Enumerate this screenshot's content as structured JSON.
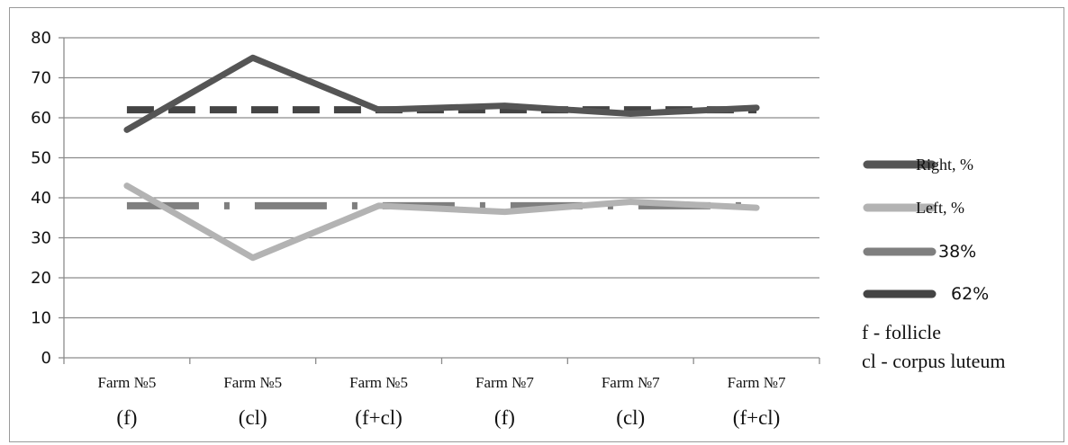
{
  "chart_data": {
    "type": "line",
    "categories": [
      [
        "Farm №5",
        "(f)"
      ],
      [
        "Farm №5",
        "(cl)"
      ],
      [
        "Farm №5",
        "(f+cl)"
      ],
      [
        "Farm №7",
        "(f)"
      ],
      [
        "Farm №7",
        "(cl)"
      ],
      [
        "Farm №7",
        "(f+cl)"
      ]
    ],
    "series": [
      {
        "name": "Right, %",
        "values": [
          57,
          75,
          62,
          63,
          61,
          62.5
        ],
        "color": "#555555",
        "style": "solid"
      },
      {
        "name": "Left, %",
        "values": [
          43,
          25,
          38,
          36.5,
          39,
          37.5
        ],
        "color": "#b3b3b3",
        "style": "solid"
      },
      {
        "name": "38%",
        "values": [
          38,
          38,
          38,
          38,
          38,
          38
        ],
        "color": "#7f7f7f",
        "style": "dash-dot"
      },
      {
        "name": "62%",
        "values": [
          62,
          62,
          62,
          62,
          62,
          62
        ],
        "color": "#444444",
        "style": "dashed"
      }
    ],
    "yticks": [
      0,
      10,
      20,
      30,
      40,
      50,
      60,
      70,
      80
    ],
    "ylim": [
      0,
      80
    ],
    "grid": true,
    "legend_position": "right",
    "notes": [
      "f - follicle",
      "cl - corpus luteum"
    ]
  }
}
